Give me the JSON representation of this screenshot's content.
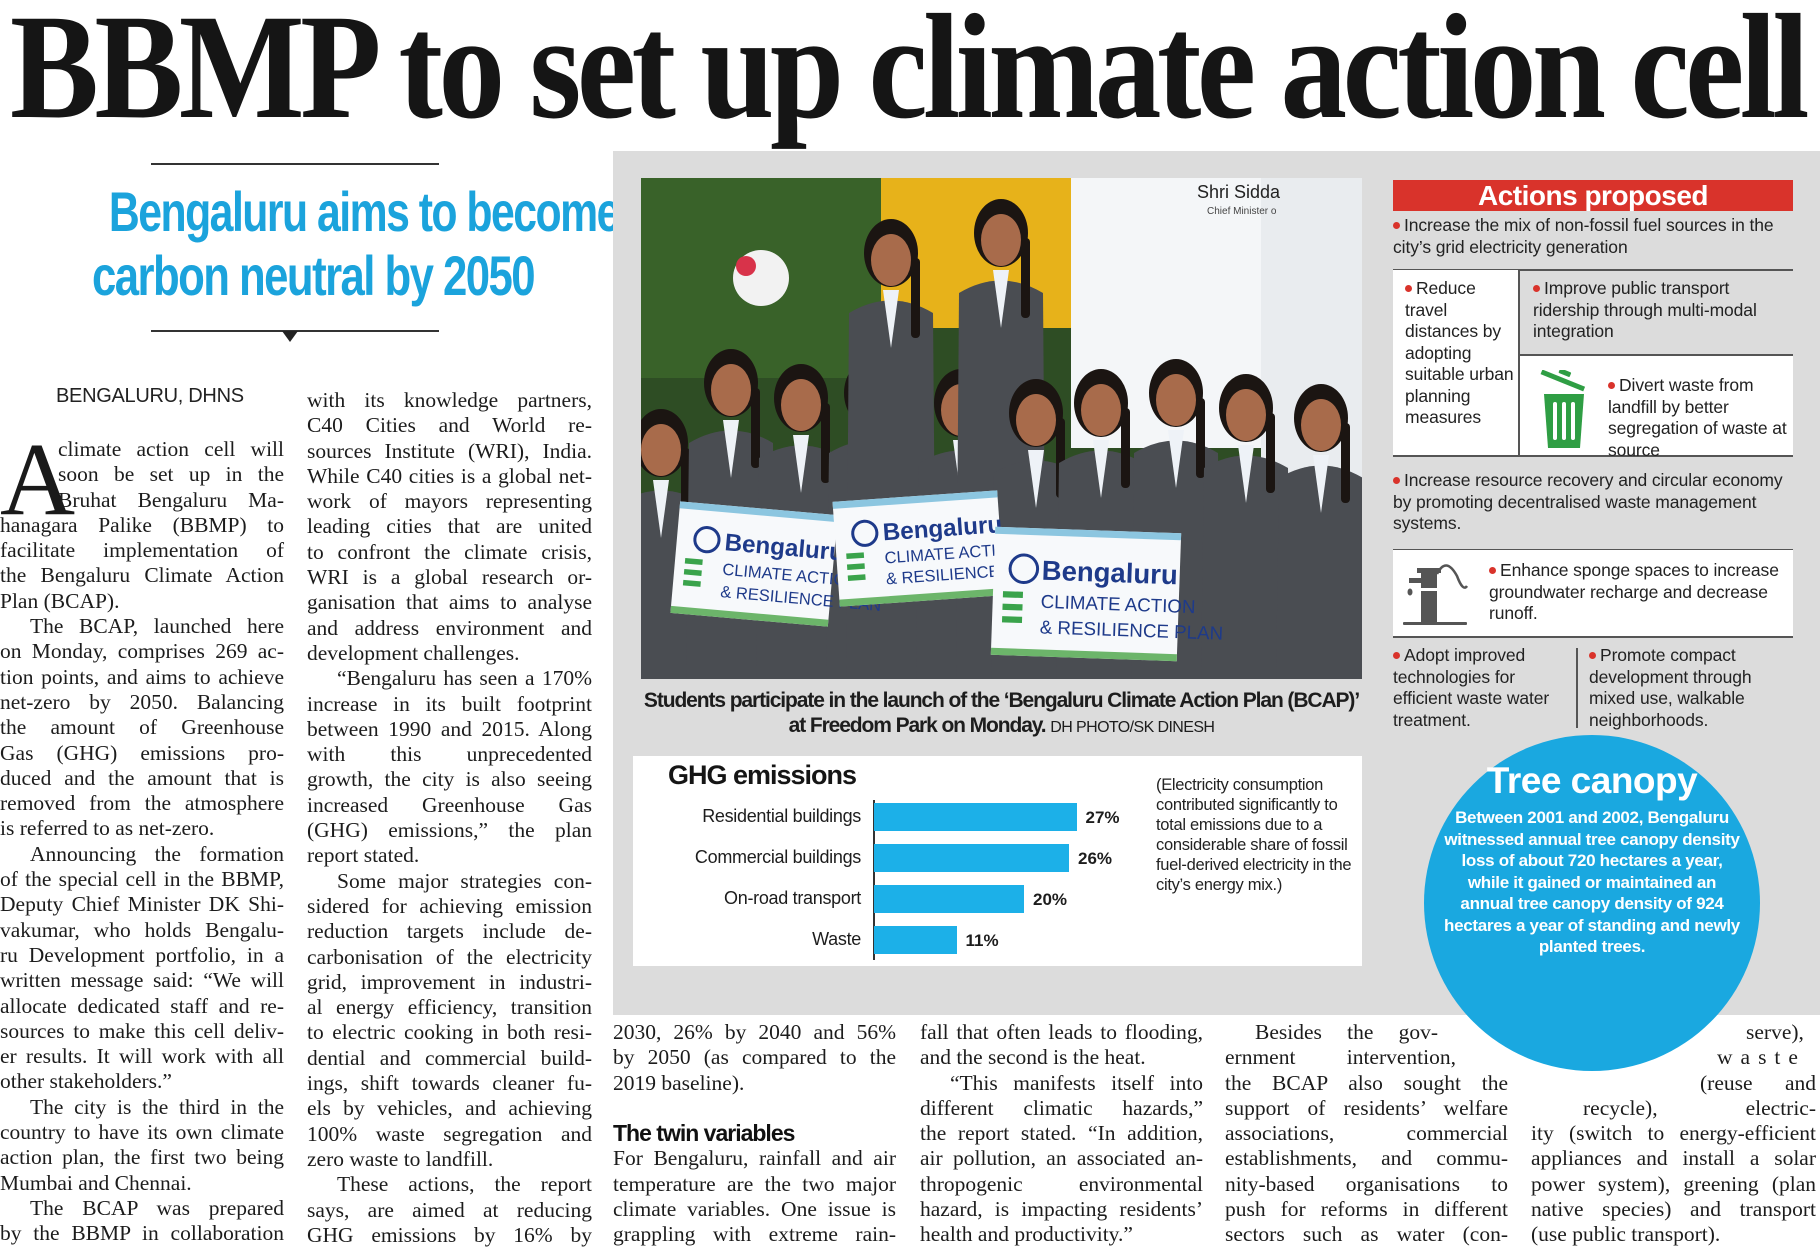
{
  "headline": "BBMP to set up climate action cell",
  "subhead": {
    "line1": "Bengaluru aims to become",
    "line2": "carbon neutral by 2050"
  },
  "dateline": "BENGALURU, DHNS",
  "drop_cap": "A",
  "columns": [
    {
      "paragraphs": [
        {
          "indent": false,
          "lines": [
            "climate action cell will",
            "soon be set up in the",
            "Bruhat Bengaluru Ma-",
            "hanagara Palike (BBMP) to",
            "facilitate implementation of",
            "the Bengaluru Climate Action",
            "Plan (BCAP)."
          ]
        },
        {
          "indent": true,
          "lines": [
            "The BCAP, launched here",
            "on Monday, comprises 269 ac-",
            "tion points, and aims to achieve",
            "net-zero by 2050. Balancing",
            "the amount of Greenhouse",
            "Gas (GHG) emissions pro-",
            "duced and the amount that is",
            "removed from the atmosphere",
            "is referred to as net-zero."
          ]
        },
        {
          "indent": true,
          "lines": [
            "Announcing the formation",
            "of the special cell in the BBMP,",
            "Deputy Chief Minister DK Shi-",
            "vakumar, who holds Bengalu-",
            "ru Development portfolio, in a",
            "written message said: “We will",
            "allocate dedicated staff and re-",
            "sources to make this cell deliv-",
            "er results. It will work with all",
            "other stakeholders.”"
          ]
        },
        {
          "indent": true,
          "lines": [
            "The city is the third in the",
            "country to have its own climate",
            "action plan, the first two being",
            "Mumbai and Chennai."
          ]
        },
        {
          "indent": true,
          "continues": true,
          "lines": [
            "The BCAP was prepared",
            "by the BBMP in collaboration"
          ]
        }
      ]
    },
    {
      "paragraphs": [
        {
          "indent": false,
          "lines": [
            "with its knowledge partners,",
            "C40 Cities and World re-",
            "sources Institute (WRI), India.",
            "While C40 cities is a global net-",
            "work of mayors representing",
            "leading cities that are united",
            "to confront the climate crisis,",
            "WRI is a global research or-",
            "ganisation that aims to analyse",
            "and address environment and",
            "development challenges."
          ]
        },
        {
          "indent": true,
          "lines": [
            "“Bengaluru has seen a 170%",
            "increase in its built footprint",
            "between 1990 and 2015. Along",
            "with this unprecedented",
            "growth, the city is also seeing",
            "increased Greenhouse Gas",
            "(GHG) emissions,” the plan",
            "report stated."
          ]
        },
        {
          "indent": true,
          "lines": [
            "Some major strategies con-",
            "sidered for achieving emission",
            "reduction targets include de-",
            "carbonisation of the electricity",
            "grid, improvement in industri-",
            "al energy efficiency, transition",
            "to electric cooking in both resi-",
            "dential and commercial build-",
            "ings, shift towards cleaner fu-",
            "els by vehicles, and achieving",
            "100% waste segregation and",
            "zero waste to landfill."
          ]
        },
        {
          "indent": true,
          "continues": true,
          "lines": [
            "These actions, the report",
            "says, are aimed at reducing",
            "GHG emissions by 16% by"
          ]
        }
      ]
    },
    {
      "paragraphs": [
        {
          "indent": false,
          "lines": [
            "2030, 26% by 2040 and 56%",
            "by 2050 (as compared to the",
            "2019 baseline)."
          ]
        },
        {
          "heading": "The twin variables"
        },
        {
          "indent": false,
          "continues": true,
          "lines": [
            "For Bengaluru, rainfall and air",
            "temperature are the two major",
            "climate variables. One issue is",
            "grappling with extreme rain-"
          ]
        }
      ]
    },
    {
      "paragraphs": [
        {
          "indent": false,
          "lines": [
            "fall that often leads to flooding,",
            "and the second is the heat."
          ]
        },
        {
          "indent": true,
          "lines": [
            "“This manifests itself into",
            "different climatic hazards,”",
            "the report stated. “In addition,",
            "air pollution, an associated an-",
            "thropogenic environmental",
            "hazard, is impacting residents’",
            "health and productivity.”"
          ]
        }
      ]
    },
    {
      "paragraphs": [
        {
          "indent": true,
          "continues": true,
          "lines": [
            "Besides the gov-",
            "ernment intervention,",
            "the BCAP also sought the",
            "support of residents’ welfare",
            "associations, commercial",
            "establishments, and commu-",
            "nity-based organisations to",
            "push for reforms in different",
            "sectors such as water (con-"
          ]
        }
      ]
    },
    {
      "paragraphs": [
        {
          "indent": false,
          "lines": [
            "serve),",
            "waste",
            "(reuse and",
            "recycle), electric-",
            "ity (switch to energy-efficient",
            "appliances and install a solar",
            "power system), greening (plan",
            "native species) and transport",
            "(use public transport)."
          ]
        }
      ]
    }
  ],
  "photo": {
    "caption_bold": "Students participate in the launch of the ‘Bengaluru Climate Action Plan (BCAP)’ at Freedom Park on Monday.",
    "credit": "DH PHOTO/SK DINESH",
    "banner_name": "Shri Sidda",
    "banner_title": "Chief Minister o",
    "sign_logo": "Bengaluru",
    "sign_line1": "CLIMATE ACTION",
    "sign_line2": "& RESILIENCE PLAN"
  },
  "chart_data": {
    "type": "bar",
    "orientation": "horizontal",
    "title": "GHG emissions",
    "categories": [
      "Residential buildings",
      "Commercial buildings",
      "On-road transport",
      "Waste"
    ],
    "values": [
      27,
      26,
      20,
      11
    ],
    "value_labels": [
      "27%",
      "26%",
      "20%",
      "11%"
    ],
    "unit": "%",
    "bar_color": "#1cb0e8",
    "grid": false,
    "note": "(Electricity consumption contributed significantly to total emissions due to a considerable share of fossil fuel-derived electricity in the city’s energy mix.)"
  },
  "actions": {
    "title": "Actions proposed",
    "header_color": "#d9332b",
    "items": [
      "Increase the mix of non-fossil fuel sources in the city’s grid electricity generation",
      "Reduce travel distances by adopting suitable urban planning measures",
      "Improve public transport ridership through multi-modal integration",
      "Divert waste from landfill by better segregation of waste at source",
      "Increase resource recovery and circular economy by promoting decentralised waste management systems.",
      "Enhance sponge spaces to increase groundwater recharge and decrease runoff.",
      "Adopt improved technologies for efficient waste water treatment.",
      "Promote compact development through mixed use, walkable neighborhoods."
    ],
    "icons": [
      "trash-bin-icon",
      "hand-pump-icon"
    ]
  },
  "tree_canopy": {
    "title": "Tree canopy",
    "body": "Between 2001 and 2002, Bengaluru witnessed annual tree canopy density loss of about 720 hectares a year, while it gained or maintained an annual tree canopy density of 924 hectares a year of standing and newly planted trees.",
    "color": "#1aa8e0"
  },
  "colors": {
    "accent_blue": "#1ba3dc",
    "panel_gray": "#dcdcdc",
    "bullet_red": "#d9332b",
    "icon_green": "#2f9e44"
  }
}
